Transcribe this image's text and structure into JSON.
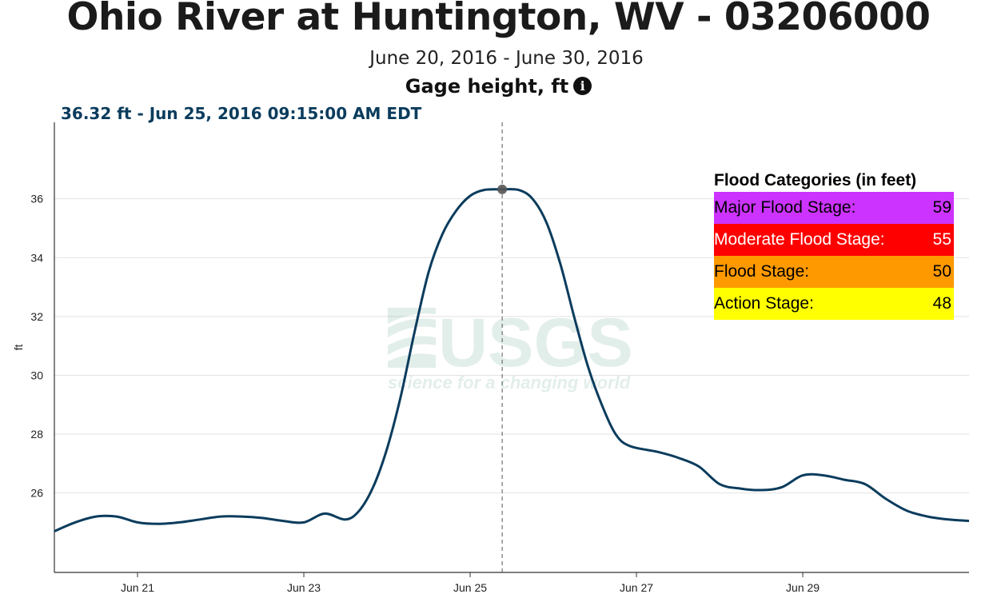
{
  "header": {
    "title": "Ohio River at Huntington, WV - 03206000",
    "subtitle": "June 20, 2016 - June 30, 2016",
    "parameter": "Gage height, ft",
    "info_icon": "info-icon"
  },
  "readout": {
    "text": "36.32 ft - Jun 25, 2016 09:15:00 AM EDT"
  },
  "watermark": {
    "logo_text": "USGS",
    "tagline": "science for a changing world"
  },
  "flood_categories": {
    "title": "Flood Categories (in feet)",
    "rows": [
      {
        "label": "Major Flood Stage:",
        "value": "59",
        "color": "#cc33ff",
        "text_color": "#000000"
      },
      {
        "label": "Moderate Flood Stage:",
        "value": "55",
        "color": "#ff0000",
        "text_color": "#ffffff"
      },
      {
        "label": "Flood Stage:",
        "value": "50",
        "color": "#ff9900",
        "text_color": "#000000"
      },
      {
        "label": "Action Stage:",
        "value": "48",
        "color": "#ffff00",
        "text_color": "#000000"
      }
    ]
  },
  "chart_data": {
    "type": "line",
    "title": "Ohio River at Huntington, WV - 03206000",
    "subtitle": "June 20, 2016 - June 30, 2016",
    "xlabel": "",
    "ylabel": "ft",
    "xlim": [
      "2016-06-20 00:00",
      "2016-06-30 23:59"
    ],
    "ylim": [
      23.3,
      38.6
    ],
    "yticks": [
      26,
      28,
      30,
      32,
      34,
      36
    ],
    "xticks": [
      {
        "label": "Jun 21",
        "t": "2016-06-21 00:00"
      },
      {
        "label": "Jun 23",
        "t": "2016-06-23 00:00"
      },
      {
        "label": "Jun 25",
        "t": "2016-06-25 00:00"
      },
      {
        "label": "Jun 27",
        "t": "2016-06-27 00:00"
      },
      {
        "label": "Jun 29",
        "t": "2016-06-29 00:00"
      }
    ],
    "grid": true,
    "line_color": "#0b3c5d",
    "highlight": {
      "t": "2016-06-25 09:15",
      "y": 36.32
    },
    "series": [
      {
        "values": [
          [
            "2016-06-20 00:00",
            24.7
          ],
          [
            "2016-06-20 06:00",
            25.0
          ],
          [
            "2016-06-20 12:00",
            25.2
          ],
          [
            "2016-06-20 18:00",
            25.2
          ],
          [
            "2016-06-21 00:00",
            25.0
          ],
          [
            "2016-06-21 06:00",
            24.95
          ],
          [
            "2016-06-21 12:00",
            25.0
          ],
          [
            "2016-06-21 18:00",
            25.1
          ],
          [
            "2016-06-22 00:00",
            25.2
          ],
          [
            "2016-06-22 06:00",
            25.2
          ],
          [
            "2016-06-22 12:00",
            25.15
          ],
          [
            "2016-06-22 18:00",
            25.05
          ],
          [
            "2016-06-23 00:00",
            25.0
          ],
          [
            "2016-06-23 06:00",
            25.3
          ],
          [
            "2016-06-23 12:00",
            25.1
          ],
          [
            "2016-06-23 16:00",
            25.4
          ],
          [
            "2016-06-23 20:00",
            26.2
          ],
          [
            "2016-06-24 00:00",
            27.5
          ],
          [
            "2016-06-24 04:00",
            29.3
          ],
          [
            "2016-06-24 08:00",
            31.5
          ],
          [
            "2016-06-24 12:00",
            33.5
          ],
          [
            "2016-06-24 16:00",
            34.8
          ],
          [
            "2016-06-24 20:00",
            35.6
          ],
          [
            "2016-06-25 00:00",
            36.1
          ],
          [
            "2016-06-25 04:00",
            36.3
          ],
          [
            "2016-06-25 09:15",
            36.32
          ],
          [
            "2016-06-25 14:00",
            36.3
          ],
          [
            "2016-06-25 18:00",
            36.0
          ],
          [
            "2016-06-25 22:00",
            35.2
          ],
          [
            "2016-06-26 02:00",
            33.8
          ],
          [
            "2016-06-26 06:00",
            32.0
          ],
          [
            "2016-06-26 10:00",
            30.3
          ],
          [
            "2016-06-26 14:00",
            29.0
          ],
          [
            "2016-06-26 18:00",
            28.0
          ],
          [
            "2016-06-26 22:00",
            27.6
          ],
          [
            "2016-06-27 06:00",
            27.4
          ],
          [
            "2016-06-27 12:00",
            27.2
          ],
          [
            "2016-06-27 18:00",
            26.9
          ],
          [
            "2016-06-28 00:00",
            26.3
          ],
          [
            "2016-06-28 06:00",
            26.15
          ],
          [
            "2016-06-28 12:00",
            26.1
          ],
          [
            "2016-06-28 18:00",
            26.2
          ],
          [
            "2016-06-29 00:00",
            26.6
          ],
          [
            "2016-06-29 06:00",
            26.6
          ],
          [
            "2016-06-29 12:00",
            26.45
          ],
          [
            "2016-06-29 18:00",
            26.3
          ],
          [
            "2016-06-30 00:00",
            25.8
          ],
          [
            "2016-06-30 06:00",
            25.4
          ],
          [
            "2016-06-30 12:00",
            25.2
          ],
          [
            "2016-06-30 18:00",
            25.1
          ],
          [
            "2016-06-30 23:59",
            25.05
          ]
        ]
      }
    ]
  }
}
